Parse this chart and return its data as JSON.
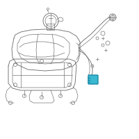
{
  "bg_color": "#ffffff",
  "line_color": "#666666",
  "line_color_dark": "#444444",
  "highlight_color": "#3ab8d0",
  "fig_size": [
    2.0,
    2.0
  ],
  "dpi": 100
}
